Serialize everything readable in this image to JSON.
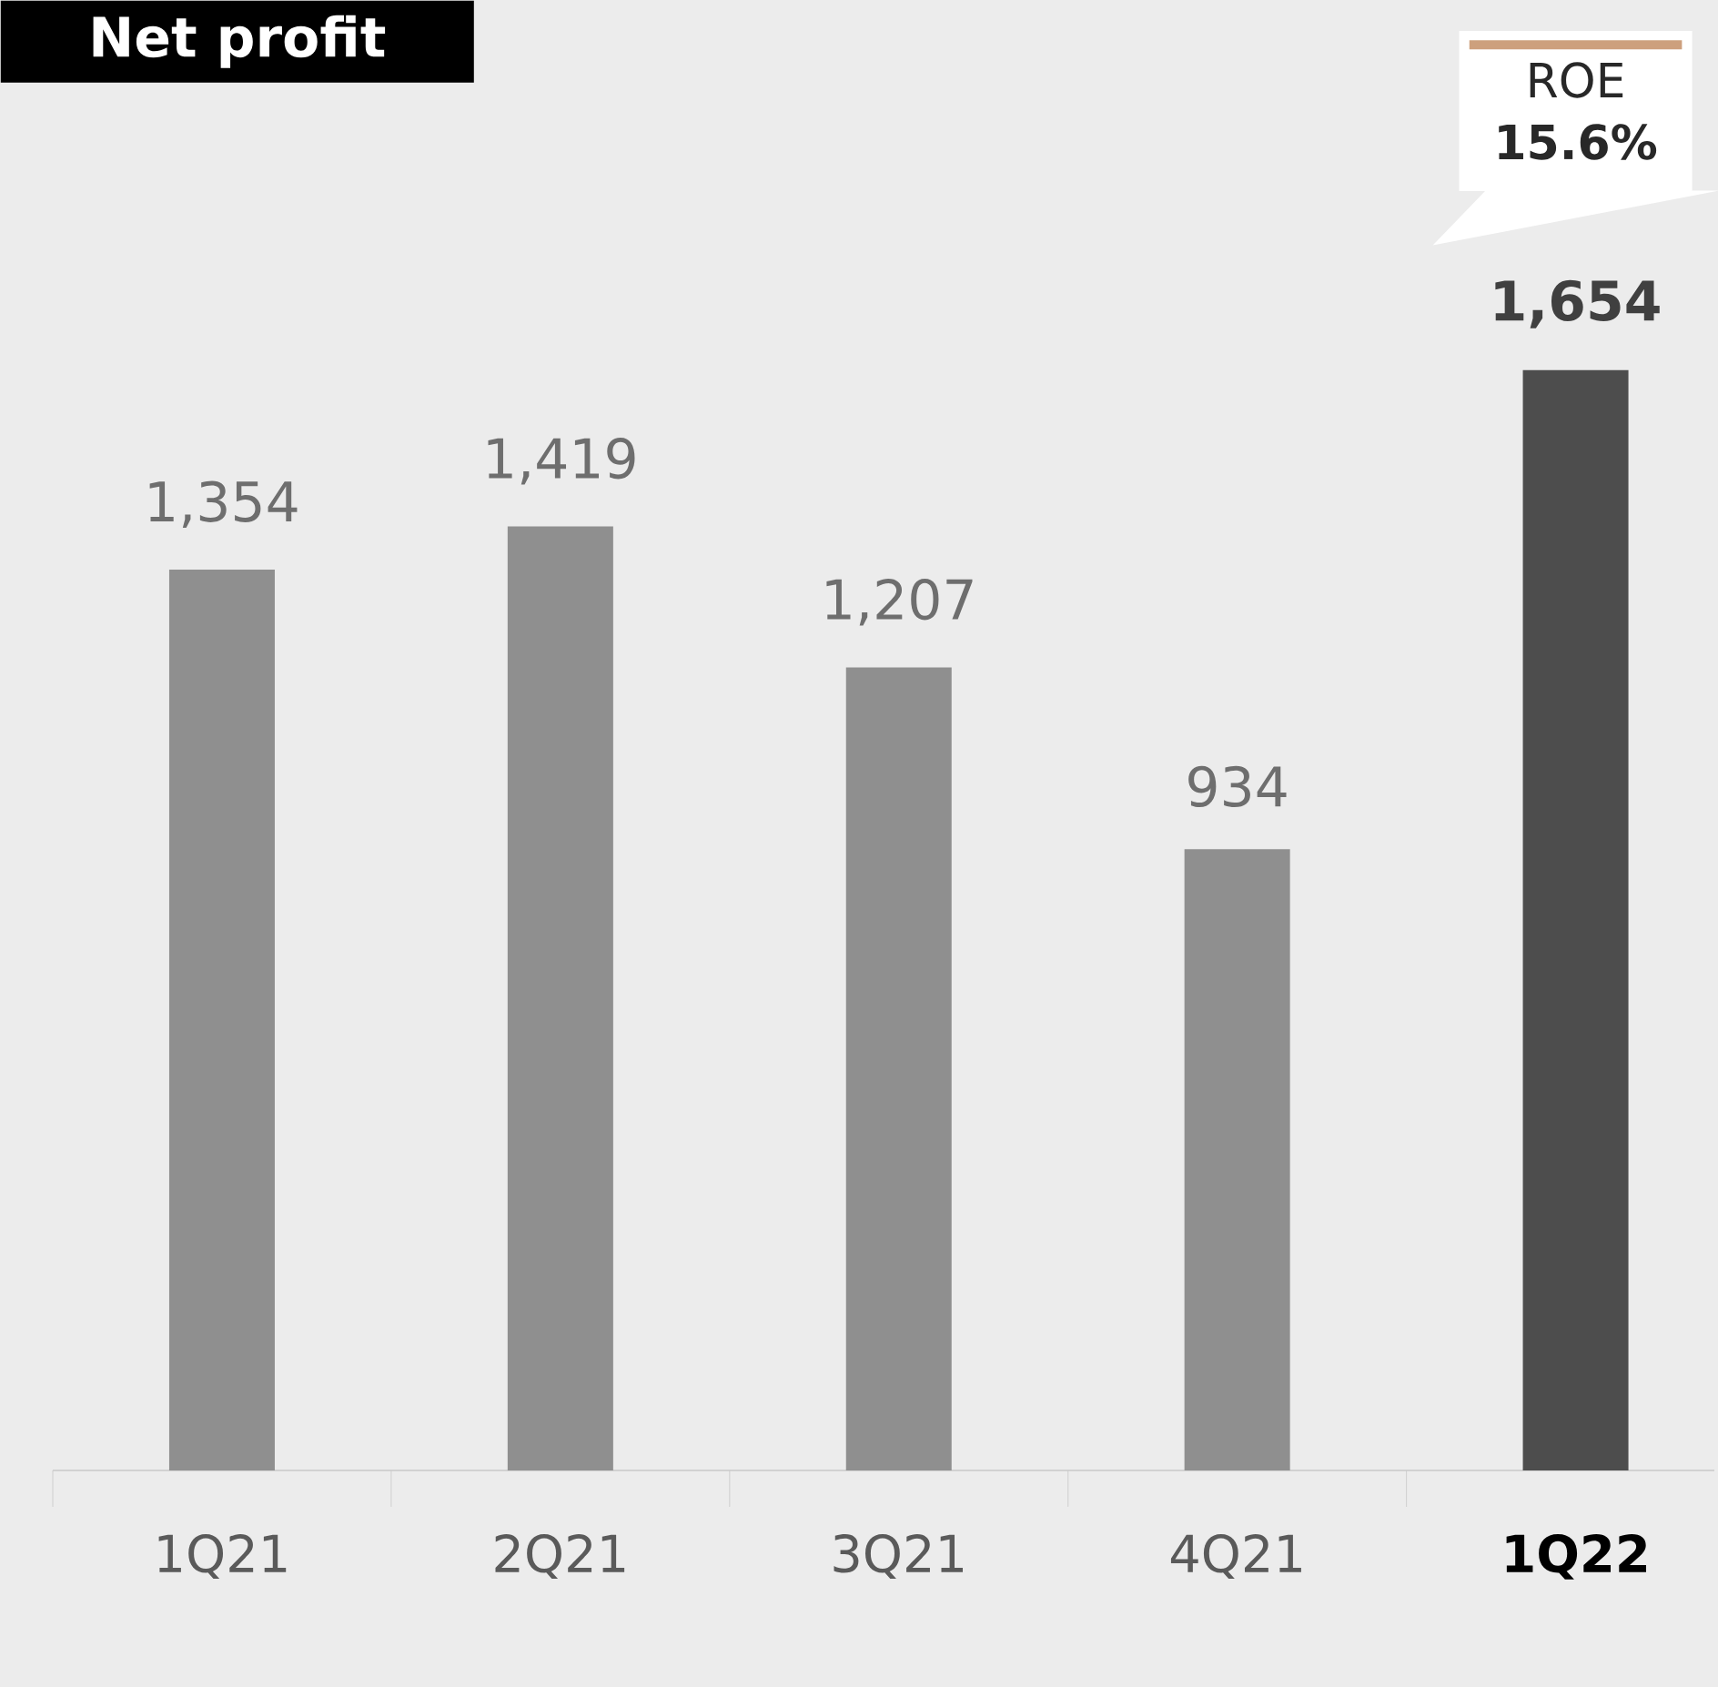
{
  "chart_data": {
    "type": "bar",
    "title": "Net profit",
    "categories": [
      "1Q21",
      "2Q21",
      "3Q21",
      "4Q21",
      "1Q22"
    ],
    "values": [
      1354,
      1419,
      1207,
      934,
      1654
    ],
    "value_labels": [
      "1,354",
      "1,419",
      "1,207",
      "934",
      "1,654"
    ],
    "colors": [
      "#8f8f8f",
      "#8f8f8f",
      "#8f8f8f",
      "#8f8f8f",
      "#4d4d4d"
    ],
    "annotations": [
      "ROE **15.6%**"
    ]
  }
}
